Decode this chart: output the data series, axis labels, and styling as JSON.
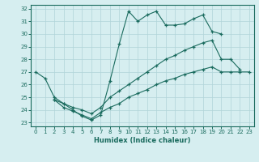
{
  "xlabel": "Humidex (Indice chaleur)",
  "bg_color": "#d6eef0",
  "line_color": "#1a6b5e",
  "grid_color": "#b0d4d8",
  "xlim": [
    -0.5,
    23.5
  ],
  "ylim": [
    22.7,
    32.3
  ],
  "xticks": [
    0,
    1,
    2,
    3,
    4,
    5,
    6,
    7,
    8,
    9,
    10,
    11,
    12,
    13,
    14,
    15,
    16,
    17,
    18,
    19,
    20,
    21,
    22,
    23
  ],
  "yticks": [
    23,
    24,
    25,
    26,
    27,
    28,
    29,
    30,
    31,
    32
  ],
  "lines": [
    {
      "x": [
        0,
        1,
        2,
        3,
        4,
        5,
        6,
        7,
        8,
        9,
        10,
        11,
        12,
        13,
        14,
        15,
        16,
        17,
        18,
        19,
        20
      ],
      "y": [
        27.0,
        26.5,
        25.0,
        24.5,
        24.0,
        23.5,
        23.2,
        23.6,
        26.3,
        29.2,
        31.8,
        31.0,
        31.5,
        31.8,
        30.7,
        30.7,
        30.8,
        31.2,
        31.5,
        30.2,
        30.0
      ]
    },
    {
      "x": [
        2,
        3,
        4,
        5,
        6,
        7,
        8,
        9,
        10,
        11,
        12,
        13,
        14,
        15,
        16,
        17,
        18,
        19,
        20,
        21,
        22
      ],
      "y": [
        24.8,
        24.5,
        24.2,
        24.0,
        23.7,
        24.2,
        25.0,
        25.5,
        26.0,
        26.5,
        27.0,
        27.5,
        28.0,
        28.3,
        28.7,
        29.0,
        29.3,
        29.5,
        28.0,
        28.0,
        27.2
      ]
    },
    {
      "x": [
        2,
        3,
        4,
        5,
        6,
        7,
        8,
        9,
        10,
        11,
        12,
        13,
        14,
        15,
        16,
        17,
        18,
        19,
        20,
        21,
        22,
        23
      ],
      "y": [
        24.8,
        24.2,
        23.9,
        23.6,
        23.3,
        23.8,
        24.2,
        24.5,
        25.0,
        25.3,
        25.6,
        26.0,
        26.3,
        26.5,
        26.8,
        27.0,
        27.2,
        27.4,
        27.0,
        27.0,
        27.0,
        27.0
      ]
    }
  ]
}
